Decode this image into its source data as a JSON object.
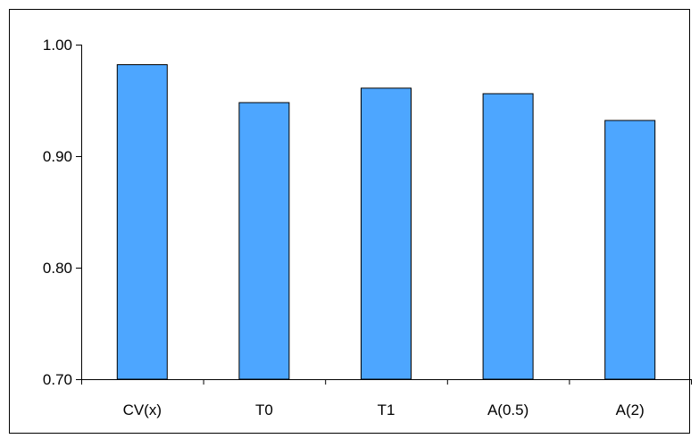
{
  "chart_data": {
    "type": "bar",
    "title": "",
    "xlabel": "",
    "ylabel": "",
    "categories": [
      "CV(x)",
      "T0",
      "T1",
      "A(0.5)",
      "A(2)"
    ],
    "values": [
      0.982,
      0.948,
      0.961,
      0.956,
      0.932
    ],
    "ylim": [
      0.7,
      1.0
    ],
    "yticks": [
      "0.70",
      "0.80",
      "0.90",
      "1.00"
    ],
    "ytick_values": [
      0.7,
      0.8,
      0.9,
      1.0
    ],
    "grid": false,
    "legend": "none",
    "bar_color": "#4da6ff",
    "bar_edge_color": "#000000"
  }
}
